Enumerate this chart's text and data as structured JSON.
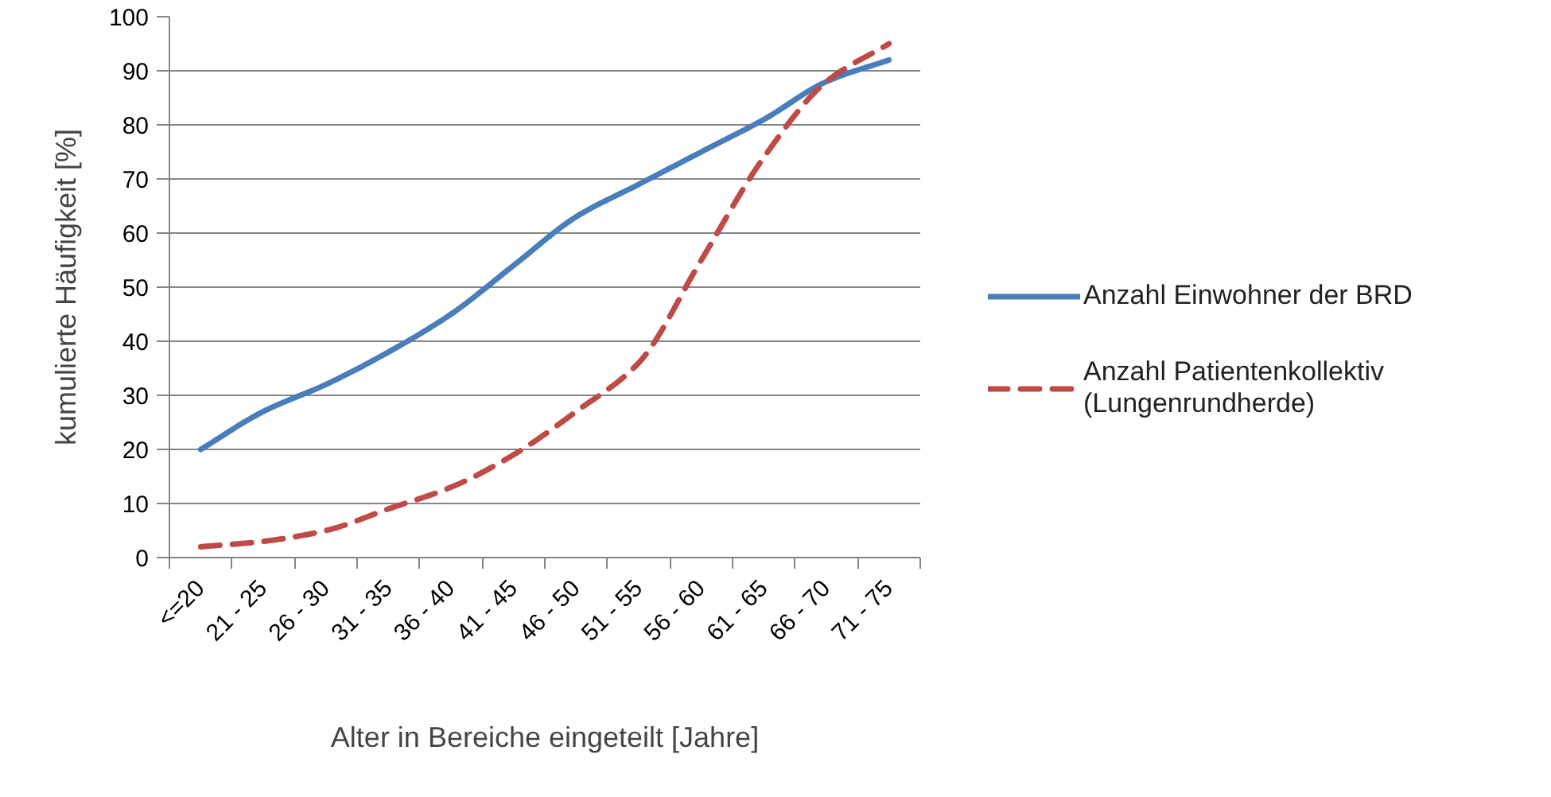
{
  "chart_data": {
    "type": "line",
    "xlabel": "Alter in Bereiche eingeteilt [Jahre]",
    "ylabel": "kumulierte Häufigkeit [%]",
    "categories": [
      "<=20",
      "21 - 25",
      "26 - 30",
      "31 - 35",
      "36 - 40",
      "41 - 45",
      "46 - 50",
      "51 - 55",
      "56 - 60",
      "61 - 65",
      "66 - 70",
      "71 - 75"
    ],
    "ylim": [
      0,
      100
    ],
    "yticks": [
      0,
      10,
      20,
      30,
      40,
      50,
      60,
      70,
      80,
      90,
      100
    ],
    "grid": "y",
    "legend": "right",
    "series": [
      {
        "name": "Anzahl Einwohner der BRD",
        "color": "#4a7ebb",
        "line_style": "solid",
        "values": [
          20,
          27,
          32,
          38,
          45,
          54,
          63,
          69,
          75,
          81,
          88,
          92
        ]
      },
      {
        "name": "Anzahl Patientenkollektiv (Lungenrundherde)",
        "color": "#be4b48",
        "line_style": "dashed",
        "values": [
          2,
          3,
          5,
          9,
          13,
          19,
          27,
          36,
          55,
          74,
          88,
          95
        ]
      }
    ]
  }
}
